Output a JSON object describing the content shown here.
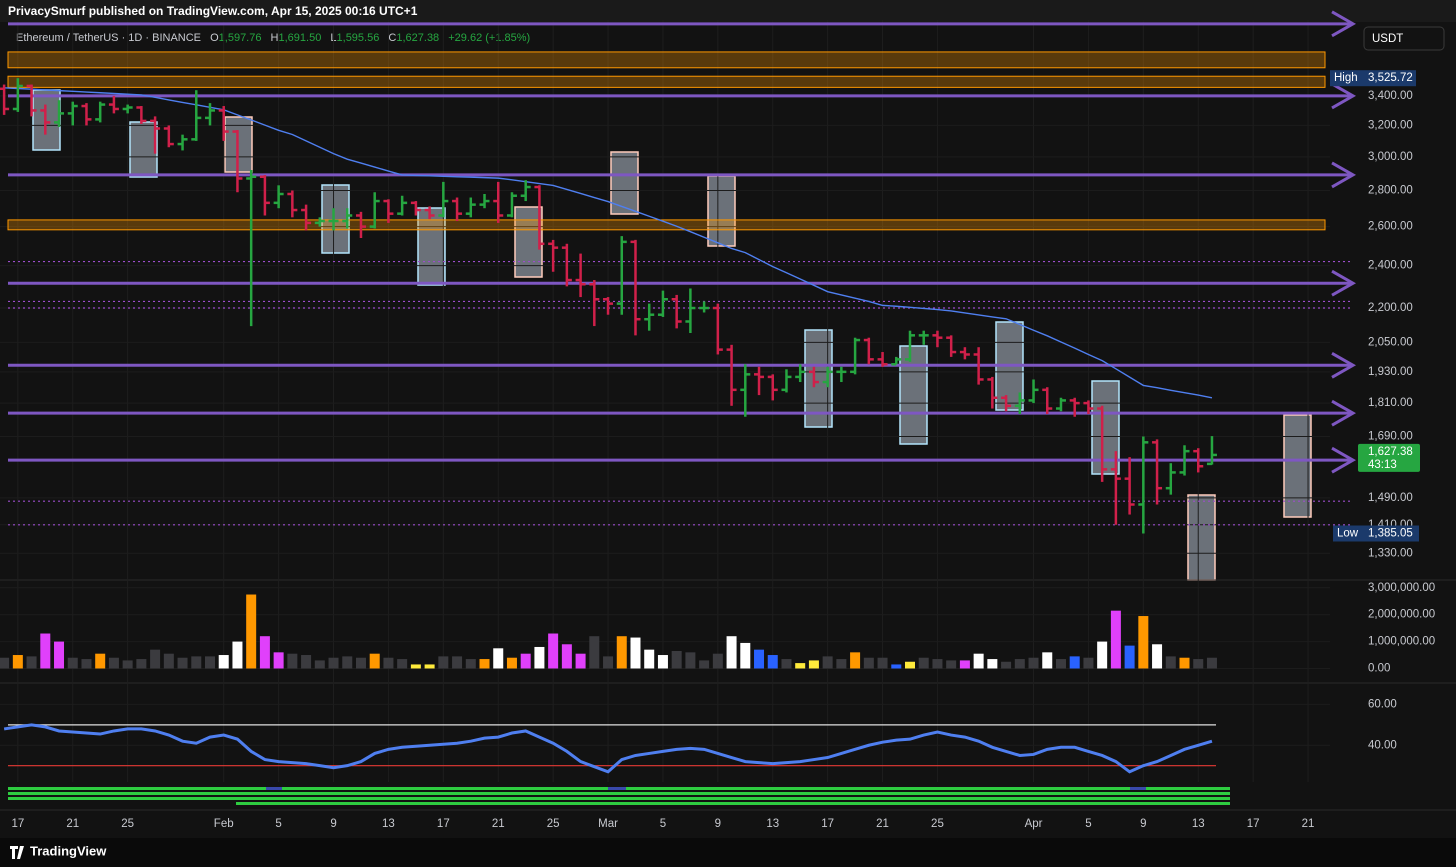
{
  "header": {
    "publisher": "PrivacySmurf published on TradingView.com, Apr 15, 2025 00:16 UTC+1",
    "symbol": "Ethereum / TetherUS · 1D · BINANCE",
    "readout": [
      {
        "label": "O",
        "text": "1,597.76"
      },
      {
        "label": "H",
        "text": "1,691.50"
      },
      {
        "label": "L",
        "text": "1,595.56"
      },
      {
        "label": "C",
        "text": "1,627.38"
      }
    ],
    "change": "+29.62 (+1.85%)",
    "currency": "USDT",
    "price_tag": "1,627.38",
    "countdown": "43:13",
    "high": {
      "label": "High",
      "text": "3,525.72"
    },
    "low": {
      "label": "Low",
      "text": "1,385.05"
    },
    "brand": "TradingView"
  },
  "chart_data": [
    {
      "type": "ohlc",
      "log_scale": true,
      "grid": true,
      "up_color": "#26a641",
      "down_color": "#d0204a",
      "ma_color": "#4f7ff0",
      "line_color": "#7e57c2",
      "zone_color": "#ff9800",
      "dotted_color": "#9c4dcc",
      "xlim": [
        -0.3,
        96.6
      ],
      "ylim": [
        1259,
        3973
      ],
      "xticks": [
        {
          "value": 1,
          "label": "17"
        },
        {
          "value": 5,
          "label": "21"
        },
        {
          "value": 9,
          "label": "25"
        },
        {
          "value": 16,
          "label": "Feb"
        },
        {
          "value": 20,
          "label": "5"
        },
        {
          "value": 24,
          "label": "9"
        },
        {
          "value": 28,
          "label": "13"
        },
        {
          "value": 32,
          "label": "17"
        },
        {
          "value": 36,
          "label": "21"
        },
        {
          "value": 40,
          "label": "25"
        },
        {
          "value": 44,
          "label": "Mar"
        },
        {
          "value": 48,
          "label": "5"
        },
        {
          "value": 52,
          "label": "9"
        },
        {
          "value": 56,
          "label": "13"
        },
        {
          "value": 60,
          "label": "17"
        },
        {
          "value": 64,
          "label": "21"
        },
        {
          "value": 68,
          "label": "25"
        },
        {
          "value": 75,
          "label": "Apr"
        },
        {
          "value": 79,
          "label": "5"
        },
        {
          "value": 83,
          "label": "9"
        },
        {
          "value": 87,
          "label": "13"
        },
        {
          "value": 91,
          "label": "17"
        },
        {
          "value": 95,
          "label": "21"
        }
      ],
      "yticks": [
        {
          "value": 3400,
          "label": "3,400.00"
        },
        {
          "value": 3200,
          "label": "3,200.00"
        },
        {
          "value": 3000,
          "label": "3,000.00"
        },
        {
          "value": 2800,
          "label": "2,800.00"
        },
        {
          "value": 2600,
          "label": "2,600.00"
        },
        {
          "value": 2400,
          "label": "2,400.00"
        },
        {
          "value": 2200,
          "label": "2,200.00"
        },
        {
          "value": 2050,
          "label": "2,050.00"
        },
        {
          "value": 1930,
          "label": "1,930.00"
        },
        {
          "value": 1810,
          "label": "1,810.00"
        },
        {
          "value": 1690,
          "label": "1,690.00"
        },
        {
          "value": 1490,
          "label": "1,490.00"
        },
        {
          "value": 1410,
          "label": "1,410.00"
        },
        {
          "value": 1330,
          "label": "1,330.00"
        }
      ],
      "lines": [
        3942,
        3400,
        2891,
        2315,
        1956,
        1773,
        1610
      ],
      "zones": [
        [
          3721,
          3602
        ],
        [
          3540,
          3460
        ],
        [
          2636,
          2583
        ]
      ],
      "dotted": [
        2420,
        2230,
        2200,
        1480,
        1410
      ],
      "open": [
        3450,
        3310,
        3470,
        3300,
        3220,
        3280,
        3330,
        3240,
        3340,
        3310,
        3320,
        3230,
        3180,
        3080,
        3110,
        3250,
        3300,
        3160,
        2870,
        2880,
        2730,
        2780,
        2690,
        2620,
        2630,
        2630,
        2660,
        2600,
        2740,
        2670,
        2730,
        2690,
        2660,
        2740,
        2670,
        2720,
        2740,
        2660,
        2770,
        2820,
        2510,
        2490,
        2330,
        2310,
        2240,
        2220,
        2520,
        2150,
        2170,
        2240,
        2140,
        2200,
        2200,
        2020,
        1860,
        1920,
        1910,
        1860,
        1910,
        1930,
        1890,
        1930,
        1930,
        2060,
        1980,
        1960,
        1980,
        2080,
        2080,
        2070,
        2010,
        2000,
        1900,
        1830,
        1800,
        1820,
        1860,
        1790,
        1820,
        1810,
        1790,
        1580,
        1550,
        1470,
        1670,
        1520,
        1570,
        1640,
        1597.76
      ],
      "high": [
        3480,
        3525.72,
        3480,
        3340,
        3370,
        3360,
        3350,
        3360,
        3400,
        3340,
        3330,
        3260,
        3200,
        3140,
        3440,
        3350,
        3330,
        3170,
        2920,
        2890,
        2830,
        2800,
        2720,
        2650,
        2700,
        2700,
        2680,
        2790,
        2750,
        2770,
        2740,
        2710,
        2850,
        2760,
        2760,
        2780,
        2850,
        2790,
        2860,
        2830,
        2530,
        2510,
        2460,
        2330,
        2250,
        2550,
        2530,
        2220,
        2280,
        2260,
        2290,
        2230,
        2220,
        2040,
        1960,
        1950,
        1920,
        1940,
        1960,
        1950,
        1950,
        1950,
        2070,
        2070,
        2010,
        1990,
        2100,
        2100,
        2100,
        2080,
        2030,
        2030,
        1910,
        1840,
        1850,
        1900,
        1870,
        1830,
        1830,
        1820,
        1800,
        1640,
        1620,
        1690,
        1680,
        1600,
        1660,
        1650,
        1691.5
      ],
      "low": [
        3270,
        3290,
        3260,
        3140,
        3190,
        3200,
        3200,
        3220,
        3280,
        3280,
        3210,
        3020,
        3060,
        3040,
        3100,
        3200,
        3100,
        2790,
        2120,
        2660,
        2700,
        2650,
        2580,
        2600,
        2580,
        2590,
        2540,
        2590,
        2620,
        2660,
        2660,
        2640,
        2650,
        2630,
        2650,
        2700,
        2620,
        2650,
        2740,
        2480,
        2370,
        2300,
        2250,
        2120,
        2170,
        2170,
        2080,
        2100,
        2160,
        2110,
        2090,
        2180,
        2000,
        1800,
        1760,
        1840,
        1820,
        1850,
        1890,
        1870,
        1870,
        1890,
        1920,
        1960,
        1950,
        1960,
        1970,
        2040,
        2030,
        1990,
        1980,
        1880,
        1790,
        1780,
        1770,
        1810,
        1770,
        1780,
        1760,
        1770,
        1540,
        1410,
        1440,
        1385.05,
        1470,
        1500,
        1560,
        1570,
        1595.56
      ],
      "close": [
        3310,
        3470,
        3300,
        3220,
        3280,
        3330,
        3240,
        3340,
        3310,
        3320,
        3230,
        3180,
        3080,
        3110,
        3250,
        3300,
        3160,
        2870,
        2880,
        2730,
        2780,
        2690,
        2620,
        2630,
        2630,
        2660,
        2600,
        2740,
        2670,
        2730,
        2690,
        2660,
        2740,
        2670,
        2720,
        2740,
        2660,
        2770,
        2820,
        2510,
        2490,
        2330,
        2310,
        2240,
        2220,
        2520,
        2150,
        2170,
        2240,
        2140,
        2200,
        2200,
        2020,
        1860,
        1920,
        1910,
        1860,
        1910,
        1930,
        1890,
        1930,
        1930,
        2060,
        1980,
        1960,
        1980,
        2080,
        2080,
        2070,
        2010,
        2000,
        1900,
        1830,
        1800,
        1820,
        1860,
        1790,
        1820,
        1810,
        1790,
        1580,
        1550,
        1470,
        1670,
        1520,
        1570,
        1640,
        1590,
        1627.38
      ],
      "ma": [
        3457,
        3452,
        3447,
        3442,
        3437,
        3432,
        3427,
        3422,
        3417,
        3412,
        3407,
        3390,
        3372,
        3355,
        3338,
        3321,
        3304,
        3270,
        3236,
        3202,
        3168,
        3141,
        3100,
        3060,
        3020,
        2986,
        2962,
        2938,
        2914,
        2891,
        2888,
        2886,
        2883,
        2880,
        2878,
        2875,
        2872,
        2862,
        2851,
        2840,
        2829,
        2806,
        2783,
        2760,
        2737,
        2710,
        2683,
        2656,
        2629,
        2602,
        2573,
        2544,
        2515,
        2486,
        2465,
        2430,
        2395,
        2365,
        2335,
        2305,
        2275,
        2260,
        2245,
        2230,
        2212,
        2208,
        2203,
        2198,
        2193,
        2187,
        2178,
        2169,
        2160,
        2152,
        2127,
        2102,
        2078,
        2052,
        2026,
        2000,
        1975,
        1942,
        1909,
        1877,
        1868,
        1858,
        1849,
        1840,
        1830
      ]
    },
    {
      "type": "bar",
      "ylim": [
        -540000,
        3290000
      ],
      "yticks": [
        {
          "value": 0,
          "label": "0.00"
        },
        {
          "value": 1000000,
          "label": "1,000,000.00"
        },
        {
          "value": 2000000,
          "label": "2,000,000.00"
        },
        {
          "value": 3000000,
          "label": "3,000,000.00"
        }
      ],
      "values": [
        400000,
        500000,
        450000,
        1300000,
        1000000,
        400000,
        350000,
        550000,
        400000,
        300000,
        350000,
        700000,
        550000,
        400000,
        450000,
        450000,
        500000,
        1000000,
        2750000,
        1200000,
        600000,
        550000,
        500000,
        300000,
        400000,
        450000,
        400000,
        550000,
        400000,
        350000,
        150000,
        150000,
        450000,
        450000,
        350000,
        350000,
        750000,
        400000,
        550000,
        800000,
        1300000,
        900000,
        550000,
        1200000,
        450000,
        1200000,
        1150000,
        700000,
        500000,
        650000,
        600000,
        300000,
        550000,
        1200000,
        950000,
        700000,
        500000,
        350000,
        200000,
        300000,
        450000,
        350000,
        600000,
        400000,
        400000,
        150000,
        250000,
        400000,
        350000,
        300000,
        300000,
        550000,
        350000,
        250000,
        350000,
        400000,
        600000,
        350000,
        450000,
        400000,
        1000000,
        2150000,
        850000,
        1950000,
        900000,
        450000,
        400000,
        350000,
        400000
      ],
      "colors": [
        "#3b3b3f",
        "#ff9800",
        "#3b3b3f",
        "#e040fb",
        "#e040fb",
        "#3b3b3f",
        "#3b3b3f",
        "#ff9800",
        "#3b3b3f",
        "#3b3b3f",
        "#3b3b3f",
        "#3b3b3f",
        "#3b3b3f",
        "#3b3b3f",
        "#3b3b3f",
        "#3b3b3f",
        "#ffffff",
        "#ffffff",
        "#ff9800",
        "#e040fb",
        "#e040fb",
        "#3b3b3f",
        "#3b3b3f",
        "#3b3b3f",
        "#3b3b3f",
        "#3b3b3f",
        "#3b3b3f",
        "#ff9800",
        "#3b3b3f",
        "#3b3b3f",
        "#ffeb3b",
        "#ffeb3b",
        "#3b3b3f",
        "#3b3b3f",
        "#3b3b3f",
        "#ff9800",
        "#ffffff",
        "#ff9800",
        "#e040fb",
        "#ffffff",
        "#e040fb",
        "#e040fb",
        "#e040fb",
        "#3b3b3f",
        "#3b3b3f",
        "#ff9800",
        "#ffffff",
        "#ffffff",
        "#ffffff",
        "#3b3b3f",
        "#3b3b3f",
        "#3b3b3f",
        "#3b3b3f",
        "#ffffff",
        "#ffffff",
        "#2962ff",
        "#2962ff",
        "#3b3b3f",
        "#ffeb3b",
        "#ffeb3b",
        "#3b3b3f",
        "#3b3b3f",
        "#ff9800",
        "#3b3b3f",
        "#3b3b3f",
        "#2962ff",
        "#ffeb3b",
        "#3b3b3f",
        "#3b3b3f",
        "#3b3b3f",
        "#e040fb",
        "#ffffff",
        "#ffffff",
        "#3b3b3f",
        "#3b3b3f",
        "#3b3b3f",
        "#ffffff",
        "#3b3b3f",
        "#2962ff",
        "#3b3b3f",
        "#ffffff",
        "#e040fb",
        "#2962ff",
        "#ff9800",
        "#ffffff",
        "#3b3b3f",
        "#ff9800",
        "#3b3b3f",
        "#3b3b3f"
      ]
    },
    {
      "type": "line",
      "ylim": [
        22,
        70.5
      ],
      "color": "#4f7ff0",
      "yticks": [
        {
          "value": 60,
          "label": "60.00"
        },
        {
          "value": 40,
          "label": "40.00"
        }
      ],
      "levels": [
        50,
        30
      ],
      "level_colors": [
        "#e0e0e0",
        "#e53935"
      ],
      "values": [
        48,
        49,
        50,
        49,
        47,
        46.5,
        46,
        45.5,
        47,
        48,
        48,
        47,
        45,
        42,
        41,
        44,
        45,
        43,
        37,
        33,
        32,
        31.5,
        31,
        30,
        29,
        30,
        32,
        36,
        38,
        39,
        39.5,
        40,
        40.5,
        41,
        42,
        43.5,
        44,
        46,
        47,
        44,
        41,
        37,
        32,
        29.5,
        27,
        33,
        35,
        36,
        37,
        38,
        38.5,
        38,
        36,
        34,
        32,
        31.5,
        31,
        31.5,
        32,
        33,
        34,
        36,
        38,
        40,
        41.5,
        42.5,
        43,
        45,
        46.5,
        45,
        44,
        42,
        39,
        37,
        35,
        35.5,
        38,
        39,
        39,
        37,
        35,
        32,
        27,
        30,
        32,
        35,
        38,
        40,
        42
      ]
    }
  ]
}
